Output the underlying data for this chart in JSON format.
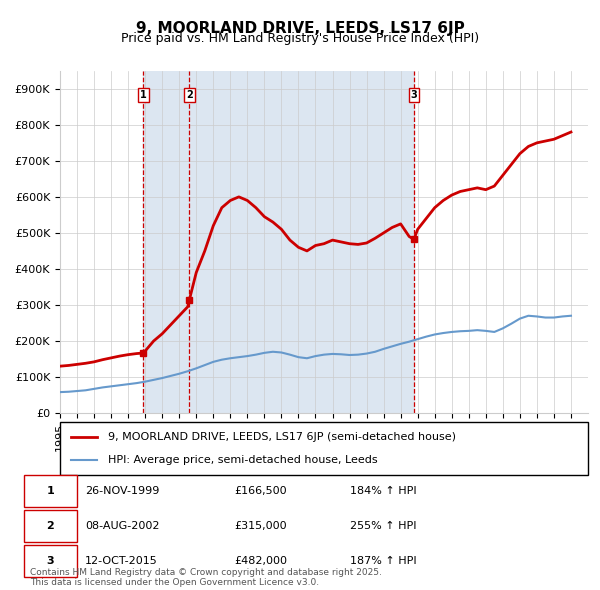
{
  "title": "9, MOORLAND DRIVE, LEEDS, LS17 6JP",
  "subtitle": "Price paid vs. HM Land Registry's House Price Index (HPI)",
  "ylabel": "",
  "xlabel": "",
  "ylim": [
    0,
    950000
  ],
  "yticks": [
    0,
    100000,
    200000,
    300000,
    400000,
    500000,
    600000,
    700000,
    800000,
    900000
  ],
  "ytick_labels": [
    "£0",
    "£100K",
    "£200K",
    "£300K",
    "£400K",
    "£500K",
    "£600K",
    "£700K",
    "£800K",
    "£900K"
  ],
  "xlim_start": 1995.0,
  "xlim_end": 2026.0,
  "background_color": "#ffffff",
  "plot_bg_color": "#ffffff",
  "grid_color": "#cccccc",
  "transactions": [
    {
      "label": "1",
      "date": 1999.9,
      "price": 166500,
      "hpi_pct": "184%",
      "date_str": "26-NOV-1999",
      "price_str": "£166,500"
    },
    {
      "label": "2",
      "date": 2002.6,
      "price": 315000,
      "hpi_pct": "255%",
      "date_str": "08-AUG-2002",
      "price_str": "£315,000"
    },
    {
      "label": "3",
      "date": 2015.78,
      "price": 482000,
      "hpi_pct": "187%",
      "date_str": "12-OCT-2015",
      "price_str": "£482,000"
    }
  ],
  "shade_color": "#dce6f1",
  "vline_color": "#cc0000",
  "vline_style": "--",
  "red_line_color": "#cc0000",
  "blue_line_color": "#6699cc",
  "hpi_line": {
    "x": [
      1995.0,
      1995.5,
      1996.0,
      1996.5,
      1997.0,
      1997.5,
      1998.0,
      1998.5,
      1999.0,
      1999.5,
      2000.0,
      2000.5,
      2001.0,
      2001.5,
      2002.0,
      2002.5,
      2003.0,
      2003.5,
      2004.0,
      2004.5,
      2005.0,
      2005.5,
      2006.0,
      2006.5,
      2007.0,
      2007.5,
      2008.0,
      2008.5,
      2009.0,
      2009.5,
      2010.0,
      2010.5,
      2011.0,
      2011.5,
      2012.0,
      2012.5,
      2013.0,
      2013.5,
      2014.0,
      2014.5,
      2015.0,
      2015.5,
      2016.0,
      2016.5,
      2017.0,
      2017.5,
      2018.0,
      2018.5,
      2019.0,
      2019.5,
      2020.0,
      2020.5,
      2021.0,
      2021.5,
      2022.0,
      2022.5,
      2023.0,
      2023.5,
      2024.0,
      2024.5,
      2025.0
    ],
    "y": [
      58000,
      59000,
      61000,
      63000,
      67000,
      71000,
      74000,
      77000,
      80000,
      83000,
      87000,
      92000,
      97000,
      103000,
      109000,
      116000,
      124000,
      133000,
      142000,
      148000,
      152000,
      155000,
      158000,
      162000,
      167000,
      170000,
      168000,
      162000,
      155000,
      152000,
      158000,
      162000,
      164000,
      163000,
      161000,
      162000,
      165000,
      170000,
      178000,
      185000,
      192000,
      198000,
      205000,
      212000,
      218000,
      222000,
      225000,
      227000,
      228000,
      230000,
      228000,
      225000,
      235000,
      248000,
      262000,
      270000,
      268000,
      265000,
      265000,
      268000,
      270000
    ]
  },
  "price_line": {
    "x": [
      1995.0,
      1995.5,
      1996.0,
      1996.5,
      1997.0,
      1997.5,
      1998.0,
      1998.5,
      1999.0,
      1999.5,
      1999.9,
      2000.5,
      2001.0,
      2001.5,
      2002.0,
      2002.5,
      2002.6,
      2003.0,
      2003.5,
      2004.0,
      2004.5,
      2005.0,
      2005.5,
      2006.0,
      2006.5,
      2007.0,
      2007.5,
      2008.0,
      2008.5,
      2009.0,
      2009.5,
      2010.0,
      2010.5,
      2011.0,
      2011.5,
      2012.0,
      2012.5,
      2013.0,
      2013.5,
      2014.0,
      2014.5,
      2015.0,
      2015.5,
      2015.78,
      2016.0,
      2016.5,
      2017.0,
      2017.5,
      2018.0,
      2018.5,
      2019.0,
      2019.5,
      2020.0,
      2020.5,
      2021.0,
      2021.5,
      2022.0,
      2022.5,
      2023.0,
      2023.5,
      2024.0,
      2024.5,
      2025.0
    ],
    "y": [
      130000,
      132000,
      135000,
      138000,
      142000,
      148000,
      153000,
      158000,
      162000,
      165000,
      166500,
      200000,
      220000,
      245000,
      270000,
      295000,
      315000,
      390000,
      450000,
      520000,
      570000,
      590000,
      600000,
      590000,
      570000,
      545000,
      530000,
      510000,
      480000,
      460000,
      450000,
      465000,
      470000,
      480000,
      475000,
      470000,
      468000,
      472000,
      485000,
      500000,
      515000,
      525000,
      490000,
      482000,
      510000,
      540000,
      570000,
      590000,
      605000,
      615000,
      620000,
      625000,
      620000,
      630000,
      660000,
      690000,
      720000,
      740000,
      750000,
      755000,
      760000,
      770000,
      780000
    ]
  },
  "legend_items": [
    {
      "label": "9, MOORLAND DRIVE, LEEDS, LS17 6JP (semi-detached house)",
      "color": "#cc0000",
      "lw": 2
    },
    {
      "label": "HPI: Average price, semi-detached house, Leeds",
      "color": "#6699cc",
      "lw": 1.5
    }
  ],
  "footnote": "Contains HM Land Registry data © Crown copyright and database right 2025.\nThis data is licensed under the Open Government Licence v3.0.",
  "title_fontsize": 11,
  "subtitle_fontsize": 9,
  "tick_fontsize": 8,
  "legend_fontsize": 8,
  "table_fontsize": 8
}
